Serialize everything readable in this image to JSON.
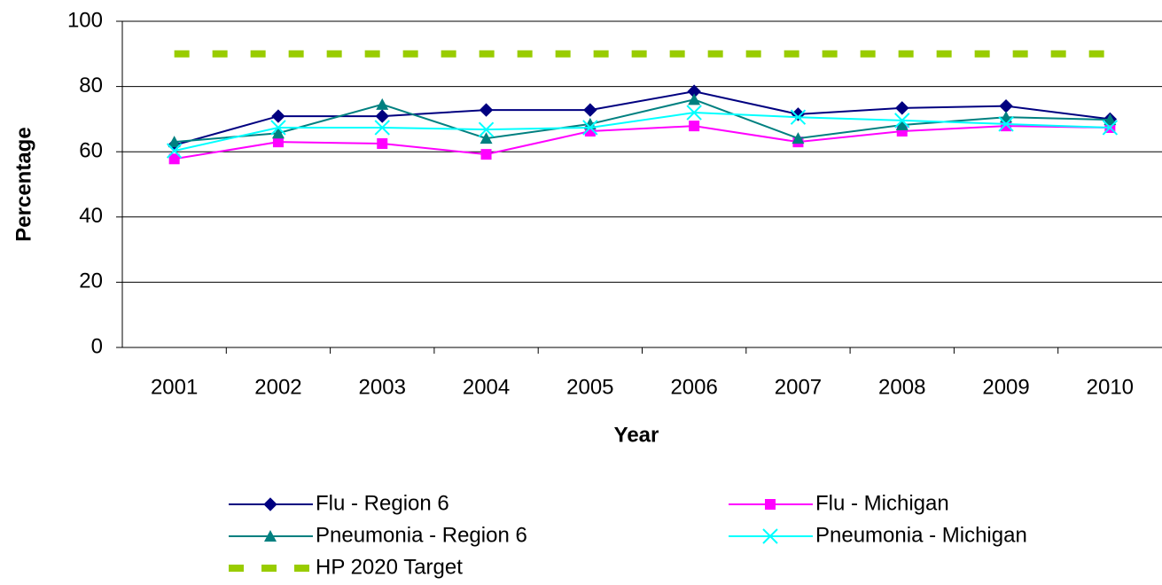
{
  "chart_data": {
    "type": "line",
    "x_label": "Year",
    "y_label": "Percentage",
    "categories": [
      "2001",
      "2002",
      "2003",
      "2004",
      "2005",
      "2006",
      "2007",
      "2008",
      "2009",
      "2010"
    ],
    "ylim": [
      0,
      100
    ],
    "yticks": [
      0,
      20,
      40,
      60,
      80,
      100
    ],
    "grid": true,
    "series": [
      {
        "name": "Flu - Region 6",
        "color": "#000080",
        "marker": "diamond",
        "values": [
          62,
          70.9,
          70.9,
          72.8,
          72.8,
          78.5,
          71.5,
          73.4,
          74,
          70
        ]
      },
      {
        "name": "Flu - Michigan",
        "color": "#ff00ff",
        "marker": "square",
        "values": [
          57.8,
          63,
          62.5,
          59.2,
          66.3,
          67.9,
          63,
          66.3,
          67.9,
          67.4
        ]
      },
      {
        "name": "Pneumonia - Region 6",
        "color": "#008080",
        "marker": "triangle",
        "values": [
          63,
          65.7,
          74.5,
          64.1,
          68.5,
          76,
          64.1,
          68.2,
          70.6,
          69.8
        ]
      },
      {
        "name": "Pneumonia - Michigan",
        "color": "#00ffff",
        "marker": "x",
        "values": [
          60.3,
          67.4,
          67.4,
          66.8,
          67.4,
          72,
          70.6,
          69.6,
          68.5,
          67.4
        ]
      },
      {
        "name": "HP 2020 Target",
        "color": "#99cc00",
        "marker": "none",
        "dashed": true,
        "values": [
          90,
          90,
          90,
          90,
          90,
          90,
          90,
          90,
          90,
          90
        ]
      }
    ]
  }
}
